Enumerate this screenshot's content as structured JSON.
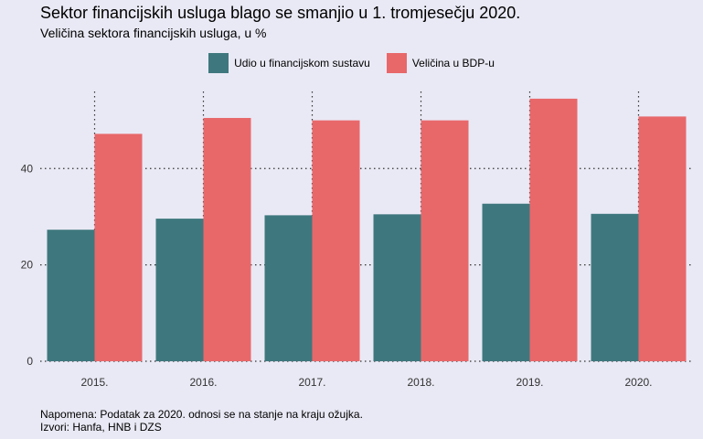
{
  "title": "Sektor financijskih usluga blago se smanjio u 1. tromjesečju 2020.",
  "subtitle": "Veličina sektora financijskih usluga, u %",
  "colors": {
    "series1": "#3e787e",
    "series2": "#e8686a"
  },
  "footnote": {
    "note": "Napomena: Podatak za 2020. odnosi se na stanje na kraju ožujka.",
    "source": "Izvori: Hanfa, HNB i DZS"
  },
  "chart_data": {
    "type": "bar",
    "categories": [
      "2015.",
      "2016.",
      "2017.",
      "2018.",
      "2019.",
      "2020."
    ],
    "series": [
      {
        "name": "Udio u financijskom sustavu",
        "values": [
          27.3,
          29.6,
          30.3,
          30.5,
          32.7,
          30.6
        ]
      },
      {
        "name": "Veličina u BDP-u",
        "values": [
          47.2,
          50.5,
          50.0,
          50.0,
          54.5,
          50.8
        ]
      }
    ],
    "yticks": [
      0,
      20,
      40
    ],
    "ylim": [
      0,
      56
    ],
    "legend_position": "top-center",
    "grid": true
  }
}
